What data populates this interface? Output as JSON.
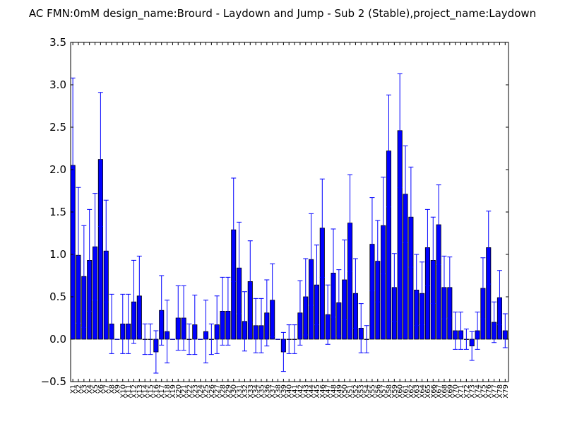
{
  "chart_data": {
    "type": "bar",
    "title": "AC  FMN:0mM  design_name:Brourd - Laydown and Jump - Sub 2 (Stable),project_name:Laydown",
    "xlabel": "",
    "ylabel": "",
    "ylim": [
      -0.5,
      3.5
    ],
    "yticks": [
      "−0.5",
      "0.0",
      "0.5",
      "1.0",
      "1.5",
      "2.0",
      "2.5",
      "3.0",
      "3.5"
    ],
    "grid": false,
    "colors": {
      "bar": "#0000ff",
      "edge": "#000000",
      "error": "#0000ff"
    },
    "categories": [
      "X1",
      "X2",
      "X3",
      "X4",
      "X5",
      "X6",
      "X7",
      "X8",
      "X9",
      "X10",
      "X11",
      "X12",
      "X13",
      "X14",
      "X15",
      "X16",
      "X17",
      "X18",
      "X19",
      "X20",
      "X21",
      "X22",
      "X23",
      "X24",
      "X25",
      "X26",
      "X27",
      "X28",
      "X29",
      "X30",
      "X31",
      "X32",
      "X33",
      "X34",
      "X35",
      "X36",
      "X37",
      "X38",
      "X39",
      "X40",
      "X41",
      "X42",
      "X43",
      "X44",
      "X45",
      "X46",
      "X47",
      "X48",
      "X49",
      "X50",
      "X51",
      "X52",
      "X53",
      "X54",
      "X55",
      "X56",
      "X57",
      "X58",
      "X59",
      "X60",
      "X61",
      "X62",
      "X63",
      "X64",
      "X65",
      "X66",
      "X67",
      "X68",
      "X69",
      "X70",
      "X71",
      "X72",
      "X73",
      "X74",
      "X75",
      "X76",
      "X77",
      "X78",
      "X79"
    ],
    "values": [
      2.05,
      0.99,
      0.74,
      0.93,
      1.09,
      2.12,
      1.04,
      0.18,
      0.0,
      0.18,
      0.18,
      0.44,
      0.51,
      0.0,
      0.0,
      -0.15,
      0.34,
      0.09,
      0.0,
      0.25,
      0.25,
      0.0,
      0.17,
      0.0,
      0.09,
      0.0,
      0.17,
      0.33,
      0.33,
      1.29,
      0.84,
      0.21,
      0.68,
      0.16,
      0.16,
      0.31,
      0.46,
      0.0,
      -0.15,
      0.0,
      0.0,
      0.31,
      0.5,
      0.94,
      0.64,
      1.31,
      0.29,
      0.78,
      0.43,
      0.7,
      1.37,
      0.54,
      0.13,
      0.0,
      1.12,
      0.92,
      1.34,
      2.22,
      0.61,
      2.46,
      1.71,
      1.44,
      0.58,
      0.54,
      1.08,
      0.93,
      1.35,
      0.61,
      0.61,
      0.1,
      0.1,
      0.0,
      -0.08,
      0.1,
      0.6,
      1.08,
      0.2,
      0.49,
      0.1
    ],
    "errors": [
      1.03,
      0.8,
      0.6,
      0.6,
      0.63,
      0.79,
      0.6,
      0.35,
      0.0,
      0.35,
      0.35,
      0.49,
      0.47,
      0.18,
      0.18,
      0.25,
      0.41,
      0.37,
      0.0,
      0.38,
      0.38,
      0.18,
      0.35,
      0.0,
      0.37,
      0.18,
      0.34,
      0.4,
      0.4,
      0.61,
      0.54,
      0.35,
      0.48,
      0.32,
      0.32,
      0.39,
      0.43,
      0.0,
      0.23,
      0.17,
      0.17,
      0.38,
      0.45,
      0.54,
      0.47,
      0.58,
      0.35,
      0.52,
      0.39,
      0.47,
      0.57,
      0.41,
      0.29,
      0.16,
      0.55,
      0.48,
      0.57,
      0.66,
      0.4,
      0.67,
      0.57,
      0.59,
      0.42,
      0.37,
      0.45,
      0.51,
      0.47,
      0.37,
      0.36,
      0.22,
      0.22,
      0.12,
      0.17,
      0.22,
      0.36,
      0.43,
      0.24,
      0.32,
      0.2
    ]
  }
}
